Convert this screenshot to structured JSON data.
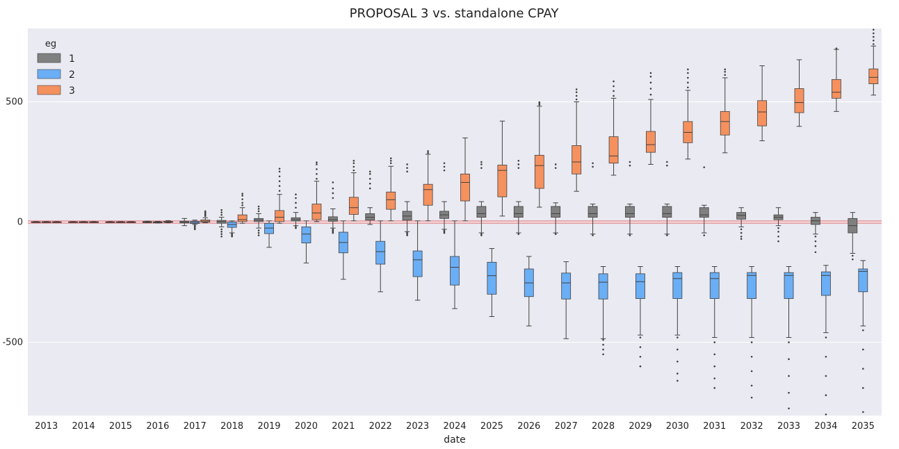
{
  "chart_data": {
    "type": "box",
    "title": "PROPOSAL 3 vs. standalone CPAY",
    "xlabel": "date",
    "ylabel": "",
    "ylim": [
      -805,
      805
    ],
    "yticks": [
      -500,
      0,
      500
    ],
    "grid": true,
    "legend": {
      "title": "eg",
      "placement": "top-left"
    },
    "reference_lines": [
      {
        "y": 0,
        "color": "#e06060"
      }
    ],
    "categories": [
      "2013",
      "2014",
      "2015",
      "2016",
      "2017",
      "2018",
      "2019",
      "2020",
      "2021",
      "2022",
      "2023",
      "2024",
      "2025",
      "2026",
      "2027",
      "2028",
      "2029",
      "2030",
      "2031",
      "2032",
      "2033",
      "2034",
      "2035"
    ],
    "series": [
      {
        "name": "1",
        "color": "#808080",
        "boxes": [
          {
            "whislo": -2,
            "q1": -1,
            "med": 0,
            "q3": 1,
            "whishi": 2
          },
          {
            "whislo": -2,
            "q1": -1,
            "med": 0,
            "q3": 1,
            "whishi": 2
          },
          {
            "whislo": -2,
            "q1": -1,
            "med": 0,
            "q3": 1,
            "whishi": 2
          },
          {
            "whislo": -3,
            "q1": -2,
            "med": -1,
            "q3": 2,
            "whishi": 4
          },
          {
            "whislo": -15,
            "q1": -4,
            "med": 0,
            "q3": 4,
            "whishi": 15
          },
          {
            "whislo": -20,
            "q1": -5,
            "med": 2,
            "q3": 7,
            "whishi": 20,
            "fliers_low": [
              -30,
              -40,
              -50,
              -60
            ],
            "fliers_high": [
              30,
              40,
              50
            ]
          },
          {
            "whislo": -25,
            "q1": 2,
            "med": 8,
            "q3": 15,
            "whishi": 35,
            "fliers_low": [
              -35,
              -45,
              -55
            ],
            "fliers_high": [
              45,
              55,
              65
            ]
          },
          {
            "whislo": -15,
            "q1": 4,
            "med": 10,
            "q3": 18,
            "whishi": 40,
            "fliers_low": [
              -20,
              -25
            ],
            "fliers_high": [
              60,
              80,
              100,
              115
            ]
          },
          {
            "whislo": -25,
            "q1": 3,
            "med": 10,
            "q3": 22,
            "whishi": 55,
            "fliers_low": [
              -30,
              -35,
              -40,
              -45
            ],
            "fliers_high": [
              100,
              120,
              140,
              165
            ]
          },
          {
            "whislo": -10,
            "q1": 8,
            "med": 20,
            "q3": 35,
            "whishi": 60,
            "fliers_high": [
              140,
              160,
              180,
              200,
              210
            ]
          },
          {
            "whislo": -40,
            "q1": 8,
            "med": 25,
            "q3": 45,
            "whishi": 85,
            "fliers_low": [
              -45,
              -50,
              -55
            ],
            "fliers_high": [
              210,
              225,
              240
            ]
          },
          {
            "whislo": -30,
            "q1": 15,
            "med": 30,
            "q3": 45,
            "whishi": 85,
            "fliers_low": [
              -35,
              -40,
              -45
            ],
            "fliers_high": [
              215,
              230,
              245
            ]
          },
          {
            "whislo": -45,
            "q1": 20,
            "med": 35,
            "q3": 65,
            "whishi": 85,
            "fliers_low": [
              -50,
              -55
            ],
            "fliers_high": [
              225,
              240,
              250
            ]
          },
          {
            "whislo": -45,
            "q1": 20,
            "med": 35,
            "q3": 65,
            "whishi": 85,
            "fliers_low": [
              -50
            ],
            "fliers_high": [
              225,
              240,
              255
            ]
          },
          {
            "whislo": -45,
            "q1": 20,
            "med": 35,
            "q3": 65,
            "whishi": 80,
            "fliers_low": [
              -50
            ],
            "fliers_high": [
              225,
              240
            ]
          },
          {
            "whislo": -50,
            "q1": 20,
            "med": 35,
            "q3": 65,
            "whishi": 75,
            "fliers_low": [
              -55
            ],
            "fliers_high": [
              230,
              245
            ]
          },
          {
            "whislo": -50,
            "q1": 20,
            "med": 35,
            "q3": 65,
            "whishi": 75,
            "fliers_low": [
              -55
            ],
            "fliers_high": [
              235,
              250
            ]
          },
          {
            "whislo": -50,
            "q1": 20,
            "med": 35,
            "q3": 65,
            "whishi": 75,
            "fliers_low": [
              -55
            ],
            "fliers_high": [
              235,
              250
            ]
          },
          {
            "whislo": -45,
            "q1": 20,
            "med": 30,
            "q3": 60,
            "whishi": 70,
            "fliers_low": [
              -55
            ],
            "fliers_high": [
              228
            ]
          },
          {
            "whislo": -20,
            "q1": 12,
            "med": 28,
            "q3": 40,
            "whishi": 60,
            "fliers_low": [
              -30,
              -45,
              -60,
              -70
            ]
          },
          {
            "whislo": -15,
            "q1": 10,
            "med": 20,
            "q3": 30,
            "whishi": 60,
            "fliers_low": [
              -25,
              -40,
              -60,
              -80
            ]
          },
          {
            "whislo": -50,
            "q1": -10,
            "med": 5,
            "q3": 20,
            "whishi": 40,
            "fliers_low": [
              -60,
              -80,
              -100,
              -125
            ]
          },
          {
            "whislo": -130,
            "q1": -45,
            "med": -15,
            "q3": 15,
            "whishi": 40,
            "fliers_low": [
              -140,
              -155
            ]
          }
        ]
      },
      {
        "name": "2",
        "color": "#6aaef5",
        "boxes": [
          {
            "whislo": -2,
            "q1": -1,
            "med": 0,
            "q3": 1,
            "whishi": 2
          },
          {
            "whislo": -2,
            "q1": -1,
            "med": 0,
            "q3": 1,
            "whishi": 2
          },
          {
            "whislo": -2,
            "q1": -1,
            "med": 0,
            "q3": 1,
            "whishi": 2
          },
          {
            "whislo": -4,
            "q1": -3,
            "med": -1,
            "q3": 1,
            "whishi": 3
          },
          {
            "whislo": -10,
            "q1": -6,
            "med": -2,
            "q3": 3,
            "whishi": 8,
            "fliers_low": [
              -15,
              -20,
              -25,
              -30
            ]
          },
          {
            "whislo": -45,
            "q1": -22,
            "med": -10,
            "q3": 0,
            "whishi": 5,
            "fliers_low": [
              -50,
              -55,
              -60
            ]
          },
          {
            "whislo": -105,
            "q1": -48,
            "med": -25,
            "q3": -5,
            "whishi": 5
          },
          {
            "whislo": -170,
            "q1": -87,
            "med": -50,
            "q3": -20,
            "whishi": 5
          },
          {
            "whislo": -238,
            "q1": -128,
            "med": -85,
            "q3": -42,
            "whishi": 5
          },
          {
            "whislo": -290,
            "q1": -175,
            "med": -123,
            "q3": -80,
            "whishi": 5
          },
          {
            "whislo": -325,
            "q1": -227,
            "med": -157,
            "q3": -120,
            "whishi": 5
          },
          {
            "whislo": -360,
            "q1": -262,
            "med": -188,
            "q3": -143,
            "whishi": 5
          },
          {
            "whislo": -393,
            "q1": -300,
            "med": -223,
            "q3": -167,
            "whishi": -110
          },
          {
            "whislo": -432,
            "q1": -310,
            "med": -253,
            "q3": -195,
            "whishi": -143
          },
          {
            "whislo": -485,
            "q1": -320,
            "med": -253,
            "q3": -212,
            "whishi": -165
          },
          {
            "whislo": -485,
            "q1": -320,
            "med": -250,
            "q3": -215,
            "whishi": -185,
            "fliers_low": [
              -490,
              -510,
              -530,
              -550
            ]
          },
          {
            "whislo": -470,
            "q1": -318,
            "med": -248,
            "q3": -215,
            "whishi": -185,
            "fliers_low": [
              -480,
              -520,
              -560,
              -600
            ]
          },
          {
            "whislo": -470,
            "q1": -318,
            "med": -235,
            "q3": -210,
            "whishi": -185,
            "fliers_low": [
              -480,
              -530,
              -580,
              -630,
              -660
            ]
          },
          {
            "whislo": -480,
            "q1": -318,
            "med": -235,
            "q3": -210,
            "whishi": -185,
            "fliers_low": [
              -500,
              -550,
              -600,
              -650,
              -690
            ]
          },
          {
            "whislo": -480,
            "q1": -318,
            "med": -222,
            "q3": -210,
            "whishi": -185,
            "fliers_low": [
              -500,
              -560,
              -620,
              -680,
              -730
            ]
          },
          {
            "whislo": -480,
            "q1": -318,
            "med": -222,
            "q3": -210,
            "whishi": -185,
            "fliers_low": [
              -500,
              -570,
              -640,
              -710,
              -775
            ]
          },
          {
            "whislo": -460,
            "q1": -305,
            "med": -222,
            "q3": -207,
            "whishi": -180,
            "fliers_low": [
              -480,
              -560,
              -640,
              -720,
              -800
            ]
          },
          {
            "whislo": -432,
            "q1": -290,
            "med": -205,
            "q3": -195,
            "whishi": -160,
            "fliers_low": [
              -450,
              -530,
              -610,
              -690,
              -790
            ]
          }
        ]
      },
      {
        "name": "3",
        "color": "#f5915e",
        "boxes": [
          {
            "whislo": -2,
            "q1": -1,
            "med": 0,
            "q3": 1,
            "whishi": 2
          },
          {
            "whislo": -2,
            "q1": -1,
            "med": 0,
            "q3": 1,
            "whishi": 2
          },
          {
            "whislo": -2,
            "q1": -1,
            "med": 0,
            "q3": 1,
            "whishi": 2
          },
          {
            "whislo": -3,
            "q1": -1,
            "med": 0,
            "q3": 3,
            "whishi": 6
          },
          {
            "whislo": -3,
            "q1": 0,
            "med": 4,
            "q3": 9,
            "whishi": 18,
            "fliers_high": [
              25,
              30,
              35,
              40,
              45
            ]
          },
          {
            "whislo": -5,
            "q1": 2,
            "med": 10,
            "q3": 30,
            "whishi": 60,
            "fliers_high": [
              70,
              80,
              95,
              110,
              118
            ]
          },
          {
            "whislo": -5,
            "q1": 2,
            "med": 20,
            "q3": 48,
            "whishi": 115,
            "fliers_high": [
              130,
              150,
              170,
              190,
              210,
              222
            ]
          },
          {
            "whislo": 2,
            "q1": 10,
            "med": 38,
            "q3": 75,
            "whishi": 170,
            "fliers_high": [
              180,
              200,
              220,
              240,
              248
            ]
          },
          {
            "whislo": 5,
            "q1": 32,
            "med": 60,
            "q3": 103,
            "whishi": 205,
            "fliers_high": [
              215,
              230,
              245,
              255
            ]
          },
          {
            "whislo": 5,
            "q1": 53,
            "med": 93,
            "q3": 125,
            "whishi": 232,
            "fliers_high": [
              245,
              255,
              265
            ]
          },
          {
            "whislo": 5,
            "q1": 70,
            "med": 135,
            "q3": 157,
            "whishi": 282,
            "fliers_high": [
              288,
              295
            ]
          },
          {
            "whislo": 5,
            "q1": 88,
            "med": 165,
            "q3": 200,
            "whishi": 350
          },
          {
            "whislo": 25,
            "q1": 105,
            "med": 215,
            "q3": 237,
            "whishi": 420
          },
          {
            "whislo": 62,
            "q1": 140,
            "med": 235,
            "q3": 278,
            "whishi": 482,
            "fliers_high": [
              488,
              492,
              498
            ]
          },
          {
            "whislo": 128,
            "q1": 200,
            "med": 250,
            "q3": 318,
            "whishi": 500,
            "fliers_high": [
              510,
              525,
              540,
              552
            ]
          },
          {
            "whislo": 195,
            "q1": 245,
            "med": 275,
            "q3": 355,
            "whishi": 515,
            "fliers_high": [
              525,
              545,
              565,
              585
            ]
          },
          {
            "whislo": 240,
            "q1": 290,
            "med": 322,
            "q3": 377,
            "whishi": 510,
            "fliers_high": [
              530,
              555,
              580,
              605,
              620
            ]
          },
          {
            "whislo": 262,
            "q1": 330,
            "med": 373,
            "q3": 418,
            "whishi": 548,
            "fliers_high": [
              560,
              580,
              600,
              620,
              635
            ]
          },
          {
            "whislo": 288,
            "q1": 362,
            "med": 418,
            "q3": 460,
            "whishi": 600,
            "fliers_high": [
              612,
              625,
              635
            ]
          },
          {
            "whislo": 338,
            "q1": 400,
            "med": 458,
            "q3": 505,
            "whishi": 650
          },
          {
            "whislo": 398,
            "q1": 455,
            "med": 497,
            "q3": 555,
            "whishi": 675
          },
          {
            "whislo": 460,
            "q1": 515,
            "med": 540,
            "q3": 593,
            "whishi": 718,
            "fliers_high": [
              722
            ]
          },
          {
            "whislo": 528,
            "q1": 575,
            "med": 602,
            "q3": 637,
            "whishi": 732,
            "fliers_high": [
              740,
              755,
              770,
              785,
              800
            ]
          }
        ]
      }
    ]
  }
}
